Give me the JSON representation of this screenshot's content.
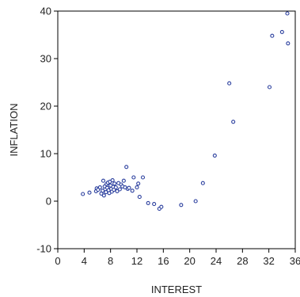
{
  "chart_data": {
    "type": "scatter",
    "title": "",
    "xlabel": "INTEREST",
    "ylabel": "INFLATION",
    "xlim": [
      0,
      36
    ],
    "ylim": [
      -10,
      40
    ],
    "x_ticks": [
      0,
      4,
      8,
      12,
      16,
      20,
      24,
      28,
      32,
      36
    ],
    "x_tick_labels": [
      "0",
      "4",
      "8",
      "12",
      "16",
      "20",
      "24",
      "28",
      "32",
      "36"
    ],
    "y_ticks": [
      -10,
      0,
      10,
      20,
      30,
      40
    ],
    "y_tick_labels": [
      "-10",
      "0",
      "10",
      "20",
      "30",
      "40"
    ],
    "grid": false,
    "colors": {
      "marker": "#2b3f9e",
      "axis": "#000000"
    },
    "series": [
      {
        "x": [
          3.8,
          4.8,
          5.8,
          5.9,
          6.1,
          6.4,
          6.6,
          6.8,
          6.9,
          7.0,
          7.1,
          7.2,
          7.3,
          7.4,
          7.5,
          7.6,
          7.7,
          7.8,
          7.9,
          8.0,
          8.1,
          8.2,
          8.3,
          8.4,
          8.5,
          8.6,
          8.8,
          9.0,
          9.2,
          9.4,
          9.6,
          9.8,
          10.0,
          10.2,
          10.4,
          10.6,
          10.8,
          11.3,
          11.5,
          12.0,
          12.2,
          12.4,
          12.9,
          13.7,
          14.6,
          15.4,
          15.7,
          18.7,
          20.9,
          22.0,
          23.8,
          26.0,
          26.6,
          32.1,
          32.5,
          34.0,
          34.8,
          34.9
        ],
        "y": [
          1.5,
          1.8,
          2.1,
          2.7,
          2.4,
          2.9,
          1.6,
          2.2,
          4.3,
          1.2,
          3.1,
          2.5,
          1.9,
          3.6,
          2.8,
          3.9,
          2.3,
          1.7,
          4.1,
          3.3,
          2.6,
          2.0,
          4.4,
          3.0,
          2.4,
          3.7,
          2.9,
          2.1,
          3.8,
          2.5,
          3.5,
          3.1,
          4.3,
          2.9,
          7.2,
          2.6,
          2.8,
          2.2,
          5.0,
          2.9,
          3.7,
          0.9,
          5.0,
          -0.4,
          -0.6,
          -1.6,
          -1.2,
          -0.8,
          0.0,
          3.8,
          9.6,
          24.8,
          16.7,
          24.0,
          34.8,
          35.6,
          39.5,
          33.2
        ]
      }
    ]
  }
}
